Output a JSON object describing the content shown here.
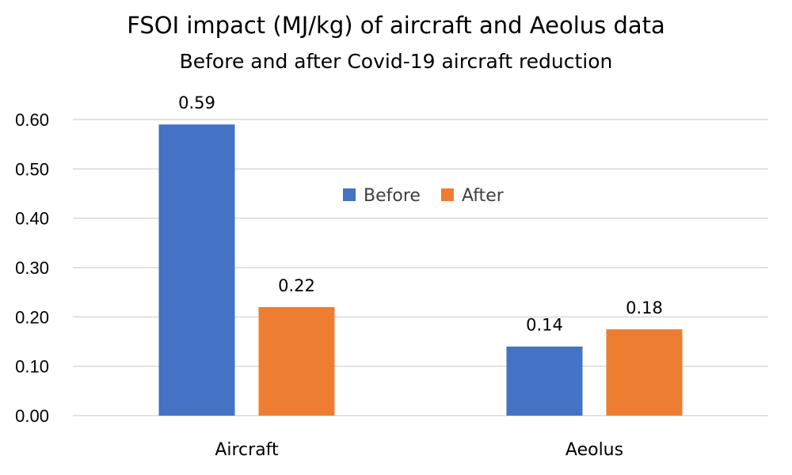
{
  "chart_data": {
    "type": "bar",
    "title": "FSOI impact (MJ/kg) of aircraft and Aeolus data",
    "subtitle": "Before and after Covid-19 aircraft reduction",
    "categories": [
      "Aircraft",
      "Aeolus"
    ],
    "series": [
      {
        "name": "Before",
        "color": "#4472c4",
        "values": [
          0.59,
          0.14
        ],
        "labels": [
          "0.59",
          "0.14"
        ]
      },
      {
        "name": "After",
        "color": "#ed7d31",
        "values": [
          0.22,
          0.175
        ],
        "labels": [
          "0.22",
          "0.18"
        ]
      }
    ],
    "ylim": [
      0,
      0.6
    ],
    "yticks": [
      "0.00",
      "0.10",
      "0.20",
      "0.30",
      "0.40",
      "0.50",
      "0.60"
    ],
    "grid": true,
    "legend_position": "inside-top-center"
  }
}
